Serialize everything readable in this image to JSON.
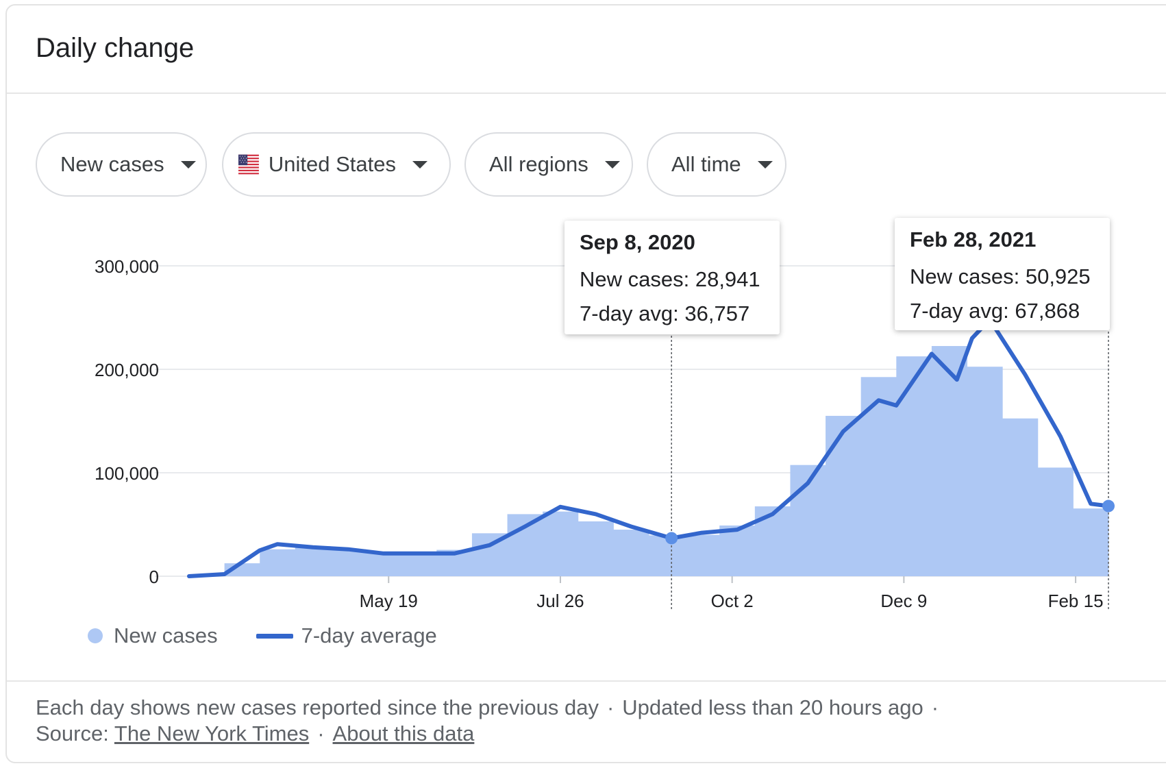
{
  "header": {
    "title": "Daily change"
  },
  "filters": [
    {
      "label": "New cases"
    },
    {
      "label": "United States",
      "icon": "us-flag-icon"
    },
    {
      "label": "All regions"
    },
    {
      "label": "All time"
    }
  ],
  "tooltips": [
    {
      "date": "Sep 8, 2020",
      "new_cases": "New cases: 28,941",
      "avg": "7-day avg: 36,757"
    },
    {
      "date": "Feb 28, 2021",
      "new_cases": "New cases: 50,925",
      "avg": "7-day avg: 67,868"
    }
  ],
  "legend": {
    "bars": "New cases",
    "line": "7-day average"
  },
  "footer": {
    "note": "Each day shows new cases reported since the previous day",
    "updated": "Updated less than 20 hours ago",
    "source_label": "Source:",
    "source_link": "The New York Times",
    "about_link": "About this data"
  },
  "colors": {
    "bars": "#aec8f4",
    "line": "#3366cc",
    "grid": "#e8eaed"
  },
  "chart_data": {
    "type": "bar",
    "title": "",
    "xlabel": "",
    "ylabel": "",
    "ylim": [
      0,
      300000
    ],
    "y_ticks": [
      0,
      100000,
      200000,
      300000
    ],
    "y_tick_labels": [
      "0",
      "100,000",
      "200,000",
      "300,000"
    ],
    "x_tick_labels": [
      "May 19",
      "Jul 26",
      "Oct 2",
      "Dec 9",
      "Feb 15"
    ],
    "x_tick_dates": [
      "2020-05-19",
      "2020-07-26",
      "2020-10-02",
      "2020-12-09",
      "2021-02-15"
    ],
    "x_range": [
      "2020-03-01",
      "2021-02-28"
    ],
    "grid": true,
    "legend_position": "bottom-left",
    "series": [
      {
        "name": "New cases",
        "type": "bar",
        "x": [
          "2020-03-01",
          "2020-03-15",
          "2020-03-29",
          "2020-04-12",
          "2020-04-26",
          "2020-05-10",
          "2020-05-24",
          "2020-06-07",
          "2020-06-21",
          "2020-07-05",
          "2020-07-19",
          "2020-08-02",
          "2020-08-16",
          "2020-08-30",
          "2020-09-13",
          "2020-09-27",
          "2020-10-11",
          "2020-10-25",
          "2020-11-08",
          "2020-11-22",
          "2020-12-06",
          "2020-12-20",
          "2021-01-03",
          "2021-01-17",
          "2021-01-31",
          "2021-02-14",
          "2021-02-28"
        ],
        "y": [
          100,
          3000,
          22000,
          30000,
          28000,
          24000,
          22000,
          21000,
          30000,
          53000,
          67000,
          58000,
          48000,
          42000,
          37000,
          43000,
          55000,
          80000,
          135000,
          175000,
          210000,
          215000,
          230000,
          175000,
          130000,
          80000,
          50925
        ]
      },
      {
        "name": "7-day average",
        "type": "line",
        "x": [
          "2020-03-01",
          "2020-03-15",
          "2020-03-29",
          "2020-04-05",
          "2020-04-19",
          "2020-05-03",
          "2020-05-17",
          "2020-05-31",
          "2020-06-14",
          "2020-06-28",
          "2020-07-12",
          "2020-07-26",
          "2020-08-09",
          "2020-08-23",
          "2020-09-08",
          "2020-09-20",
          "2020-10-04",
          "2020-10-18",
          "2020-11-01",
          "2020-11-15",
          "2020-11-29",
          "2020-12-06",
          "2020-12-20",
          "2020-12-30",
          "2021-01-05",
          "2021-01-12",
          "2021-01-26",
          "2021-02-09",
          "2021-02-21",
          "2021-02-28"
        ],
        "y": [
          0,
          2000,
          25000,
          31000,
          28000,
          26000,
          22000,
          22000,
          22000,
          30000,
          48000,
          67000,
          60000,
          48000,
          36757,
          42000,
          45000,
          60000,
          90000,
          140000,
          170000,
          165000,
          215000,
          190000,
          230000,
          248000,
          195000,
          135000,
          70000,
          67868
        ]
      }
    ],
    "highlighted_points": [
      {
        "date": "2020-09-08",
        "new_cases": 28941,
        "avg": 36757
      },
      {
        "date": "2021-02-28",
        "new_cases": 50925,
        "avg": 67868
      }
    ]
  }
}
